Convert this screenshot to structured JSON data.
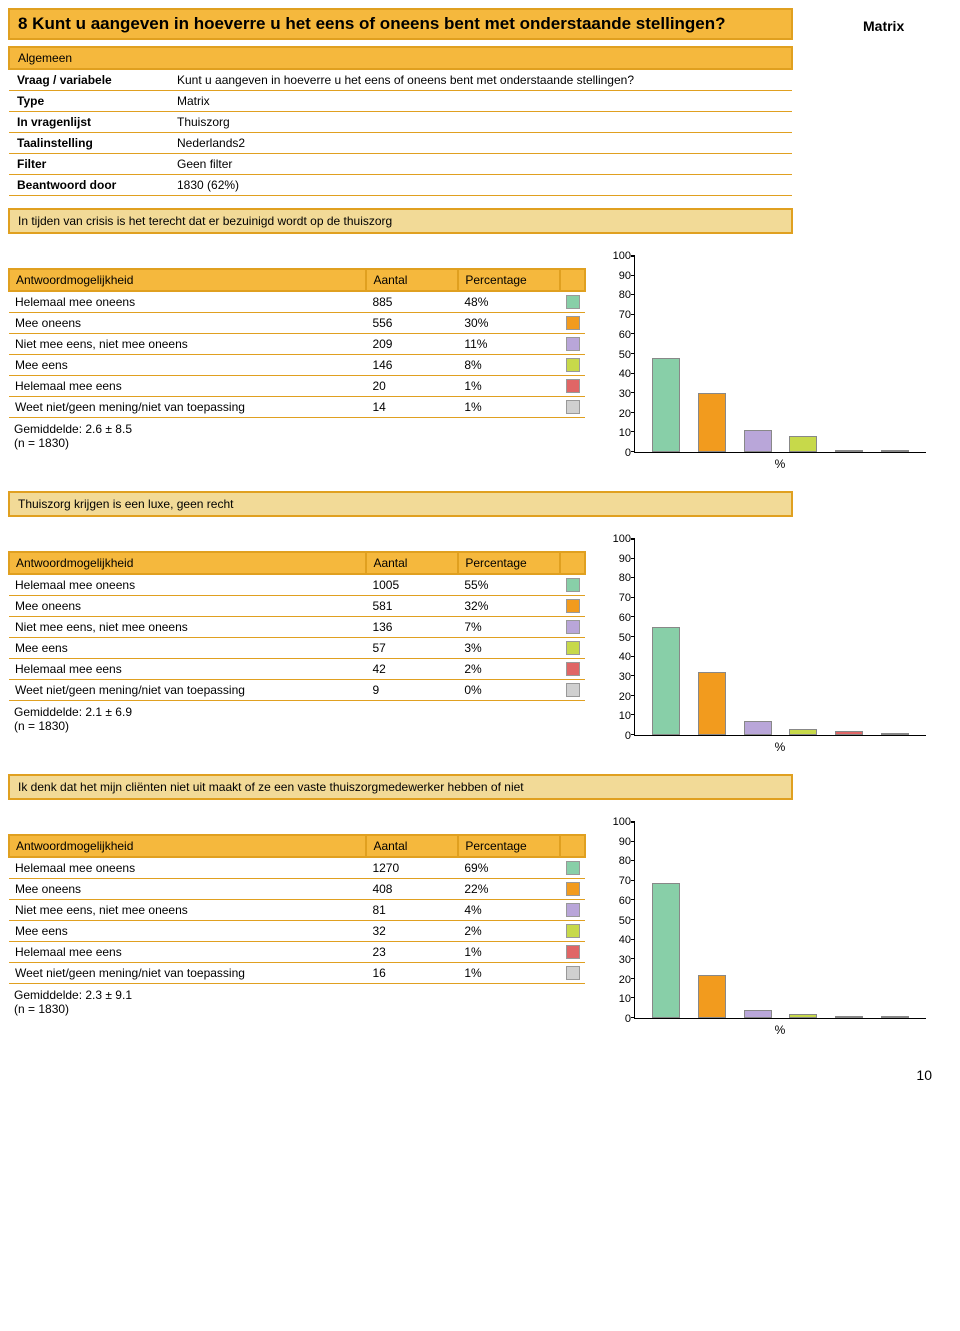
{
  "colors": {
    "header_bg": "#f5b83d",
    "header_border": "#e0a020",
    "statement_bg": "#f2da97",
    "swatches": [
      "#88cfa8",
      "#f29b1e",
      "#b9a6d9",
      "#c7d94a",
      "#e06666",
      "#d0d0d0"
    ]
  },
  "question": {
    "number_title": "8 Kunt u aangeven in hoeverre u het eens of oneens bent met onderstaande stellingen?",
    "type_badge": "Matrix"
  },
  "meta": {
    "section": "Algemeen",
    "rows": [
      {
        "label": "Vraag / variabele",
        "value": "Kunt u aangeven in hoeverre u het eens of oneens bent met onderstaande stellingen?"
      },
      {
        "label": "Type",
        "value": "Matrix"
      },
      {
        "label": "In vragenlijst",
        "value": "Thuiszorg"
      },
      {
        "label": "Taalinstelling",
        "value": "Nederlands2"
      },
      {
        "label": "Filter",
        "value": "Geen filter"
      },
      {
        "label": "Beantwoord door",
        "value": "1830 (62%)"
      }
    ]
  },
  "answer_headers": {
    "opt": "Antwoordmogelijkheid",
    "count": "Aantal",
    "pct": "Percentage"
  },
  "statements": [
    {
      "text": "In tijden van crisis is het terecht dat er bezuinigd wordt op de thuiszorg",
      "rows": [
        {
          "label": "Helemaal mee oneens",
          "count": "885",
          "pct": "48%",
          "bar": 48
        },
        {
          "label": "Mee oneens",
          "count": "556",
          "pct": "30%",
          "bar": 30
        },
        {
          "label": "Niet mee eens, niet mee oneens",
          "count": "209",
          "pct": "11%",
          "bar": 11
        },
        {
          "label": "Mee eens",
          "count": "146",
          "pct": "8%",
          "bar": 8
        },
        {
          "label": "Helemaal mee eens",
          "count": "20",
          "pct": "1%",
          "bar": 1
        },
        {
          "label": "Weet niet/geen mening/niet van toepassing",
          "count": "14",
          "pct": "1%",
          "bar": 1
        }
      ],
      "gemiddelde": "Gemiddelde: 2.6 ± 8.5",
      "n": "(n = 1830)"
    },
    {
      "text": "Thuiszorg krijgen is een luxe, geen recht",
      "rows": [
        {
          "label": "Helemaal mee oneens",
          "count": "1005",
          "pct": "55%",
          "bar": 55
        },
        {
          "label": "Mee oneens",
          "count": "581",
          "pct": "32%",
          "bar": 32
        },
        {
          "label": "Niet mee eens, niet mee oneens",
          "count": "136",
          "pct": "7%",
          "bar": 7
        },
        {
          "label": "Mee eens",
          "count": "57",
          "pct": "3%",
          "bar": 3
        },
        {
          "label": "Helemaal mee eens",
          "count": "42",
          "pct": "2%",
          "bar": 2
        },
        {
          "label": "Weet niet/geen mening/niet van toepassing",
          "count": "9",
          "pct": "0%",
          "bar": 0
        }
      ],
      "gemiddelde": "Gemiddelde: 2.1 ± 6.9",
      "n": "(n = 1830)"
    },
    {
      "text": "Ik denk dat het mijn cliënten niet uit maakt of ze een vaste thuiszorgmedewerker hebben of niet",
      "rows": [
        {
          "label": "Helemaal mee oneens",
          "count": "1270",
          "pct": "69%",
          "bar": 69
        },
        {
          "label": "Mee oneens",
          "count": "408",
          "pct": "22%",
          "bar": 22
        },
        {
          "label": "Niet mee eens, niet mee oneens",
          "count": "81",
          "pct": "4%",
          "bar": 4
        },
        {
          "label": "Mee eens",
          "count": "32",
          "pct": "2%",
          "bar": 2
        },
        {
          "label": "Helemaal mee eens",
          "count": "23",
          "pct": "1%",
          "bar": 1
        },
        {
          "label": "Weet niet/geen mening/niet van toepassing",
          "count": "16",
          "pct": "1%",
          "bar": 1
        }
      ],
      "gemiddelde": "Gemiddelde: 2.3 ± 9.1",
      "n": "(n = 1830)"
    }
  ],
  "chart": {
    "ymax": 100,
    "yticks": [
      0,
      10,
      20,
      30,
      40,
      50,
      60,
      70,
      80,
      90,
      100
    ],
    "xlabel": "%"
  },
  "pagenum": "10"
}
